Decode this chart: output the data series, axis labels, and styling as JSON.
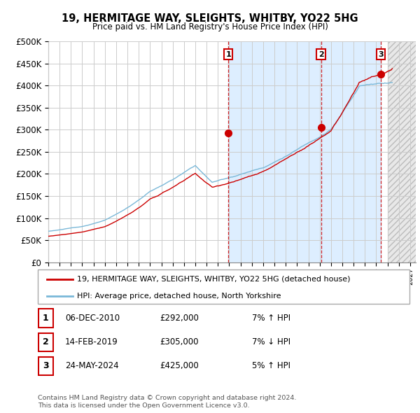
{
  "title": "19, HERMITAGE WAY, SLEIGHTS, WHITBY, YO22 5HG",
  "subtitle": "Price paid vs. HM Land Registry's House Price Index (HPI)",
  "ylim": [
    0,
    500000
  ],
  "yticks": [
    0,
    50000,
    100000,
    150000,
    200000,
    250000,
    300000,
    350000,
    400000,
    450000,
    500000
  ],
  "ytick_labels": [
    "£0",
    "£50K",
    "£100K",
    "£150K",
    "£200K",
    "£250K",
    "£300K",
    "£350K",
    "£400K",
    "£450K",
    "£500K"
  ],
  "xlim_start": 1995.0,
  "xlim_end": 2027.5,
  "hpi_color": "#7ab8d8",
  "price_color": "#cc0000",
  "vline_color": "#cc0000",
  "grid_color": "#cccccc",
  "highlight_color": "#ddeeff",
  "future_color": "#e8e8e8",
  "sale_points": [
    {
      "year": 2010.92,
      "price": 292000,
      "label": "1"
    },
    {
      "year": 2019.12,
      "price": 305000,
      "label": "2"
    },
    {
      "year": 2024.4,
      "price": 425000,
      "label": "3"
    }
  ],
  "legend_line1": "19, HERMITAGE WAY, SLEIGHTS, WHITBY, YO22 5HG (detached house)",
  "legend_line2": "HPI: Average price, detached house, North Yorkshire",
  "table_rows": [
    {
      "num": "1",
      "date": "06-DEC-2010",
      "price": "£292,000",
      "hpi": "7% ↑ HPI"
    },
    {
      "num": "2",
      "date": "14-FEB-2019",
      "price": "£305,000",
      "hpi": "7% ↓ HPI"
    },
    {
      "num": "3",
      "date": "24-MAY-2024",
      "price": "£425,000",
      "hpi": "5% ↑ HPI"
    }
  ],
  "footnote1": "Contains HM Land Registry data © Crown copyright and database right 2024.",
  "footnote2": "This data is licensed under the Open Government Licence v3.0."
}
